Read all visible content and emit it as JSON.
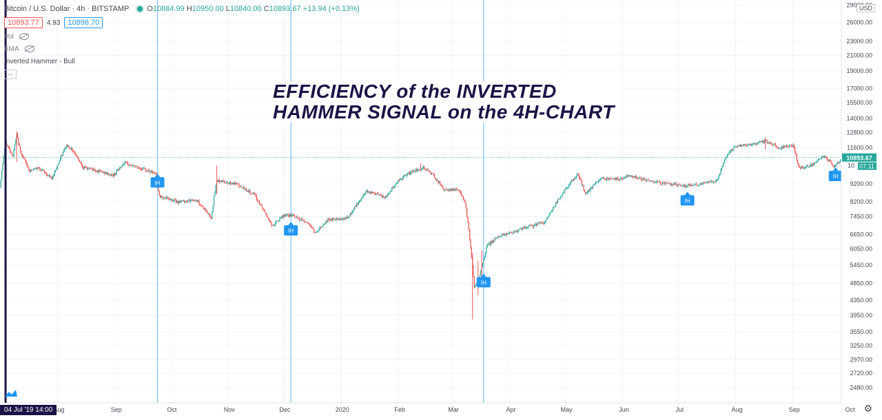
{
  "header": {
    "symbol_title": "Bitcoin / U.S. Dollar · 4h · BITSTAMP",
    "ohlc": {
      "open_label": "O",
      "open": "10884.99",
      "high_label": "H",
      "high": "10950.00",
      "low_label": "L",
      "low": "10840.00",
      "close_label": "C",
      "close": "10893.67",
      "change": "+13.94 (+0.13%)"
    },
    "bid": "10893.77",
    "spread": "4.93",
    "ask": "10898.70",
    "indicators": [
      {
        "label": "Vol"
      },
      {
        "label": "EMA"
      },
      {
        "label": "Inverted Hammer - Bull"
      }
    ],
    "collapse_icon": "chevron-up-icon"
  },
  "headline": {
    "line1": "EFFICIENCY of the INVERTED",
    "line2": "HAMMER  SIGNAL on the 4H-CHART"
  },
  "price_axis": {
    "currency": "USD",
    "last_price": "10893.67",
    "countdown": "07:11",
    "hidden_label": "10"
  },
  "time_axis": {
    "cursor_date": "04 Jul '19   14:00"
  },
  "colors": {
    "up": "#26a69a",
    "down": "#ef5350",
    "marker": "#2196f3",
    "cursor": "#1a1446",
    "annotation": "#2196f3"
  },
  "chart_data": {
    "type": "candlestick",
    "scale": "log",
    "y_ticks": [
      29000,
      26000,
      23000,
      21000,
      19000,
      17000,
      15500,
      14000,
      12800,
      11600,
      9200,
      8200,
      7450,
      6650,
      6050,
      5450,
      4850,
      4350,
      3950,
      3550,
      3250,
      2970,
      2720,
      2480
    ],
    "ylim": [
      2250,
      30000
    ],
    "x_ticks": [
      "Aug",
      "Sep",
      "Oct",
      "Nov",
      "Dec",
      "2020",
      "Feb",
      "Mar",
      "Apr",
      "May",
      "Jun",
      "Jul",
      "Aug",
      "Sep",
      "Oct"
    ],
    "x_tick_dates": [
      "2019-08-01",
      "2019-09-01",
      "2019-10-01",
      "2019-11-01",
      "2019-12-01",
      "2020-01-01",
      "2020-02-01",
      "2020-03-01",
      "2020-04-01",
      "2020-05-01",
      "2020-06-01",
      "2020-07-01",
      "2020-08-01",
      "2020-09-01",
      "2020-10-01"
    ],
    "xlim": [
      "2019-07-01",
      "2020-10-19"
    ],
    "cursor_date": "2019-07-04",
    "price_path": [
      [
        "2019-07-01",
        9000
      ],
      [
        "2019-07-04",
        12000
      ],
      [
        "2019-07-08",
        11000
      ],
      [
        "2019-07-10",
        12600
      ],
      [
        "2019-07-12",
        11300
      ],
      [
        "2019-07-17",
        10000
      ],
      [
        "2019-07-22",
        10200
      ],
      [
        "2019-07-29",
        9500
      ],
      [
        "2019-08-06",
        11800
      ],
      [
        "2019-08-10",
        11300
      ],
      [
        "2019-08-15",
        10200
      ],
      [
        "2019-08-20",
        10100
      ],
      [
        "2019-08-31",
        9700
      ],
      [
        "2019-09-06",
        10500
      ],
      [
        "2019-09-19",
        10000
      ],
      [
        "2019-09-23",
        9800
      ],
      [
        "2019-09-25",
        8500
      ],
      [
        "2019-10-05",
        8200
      ],
      [
        "2019-10-15",
        8300
      ],
      [
        "2019-10-23",
        7400
      ],
      [
        "2019-10-26",
        9400
      ],
      [
        "2019-11-05",
        9200
      ],
      [
        "2019-11-15",
        8600
      ],
      [
        "2019-11-25",
        7000
      ],
      [
        "2019-12-01",
        7500
      ],
      [
        "2019-12-06",
        7500
      ],
      [
        "2019-12-15",
        7100
      ],
      [
        "2019-12-18",
        6700
      ],
      [
        "2019-12-25",
        7300
      ],
      [
        "2020-01-05",
        7400
      ],
      [
        "2020-01-15",
        8800
      ],
      [
        "2020-01-25",
        8400
      ],
      [
        "2020-02-01",
        9400
      ],
      [
        "2020-02-09",
        10000
      ],
      [
        "2020-02-15",
        10200
      ],
      [
        "2020-02-20",
        9700
      ],
      [
        "2020-02-26",
        8800
      ],
      [
        "2020-03-04",
        8900
      ],
      [
        "2020-03-08",
        8200
      ],
      [
        "2020-03-12",
        5400
      ],
      [
        "2020-03-13",
        4700
      ],
      [
        "2020-03-16",
        5100
      ],
      [
        "2020-03-20",
        6200
      ],
      [
        "2020-03-27",
        6600
      ],
      [
        "2020-04-05",
        6800
      ],
      [
        "2020-04-12",
        7000
      ],
      [
        "2020-04-20",
        7200
      ],
      [
        "2020-04-30",
        8700
      ],
      [
        "2020-05-08",
        9800
      ],
      [
        "2020-05-12",
        8600
      ],
      [
        "2020-05-20",
        9500
      ],
      [
        "2020-05-31",
        9500
      ],
      [
        "2020-06-05",
        9700
      ],
      [
        "2020-06-15",
        9400
      ],
      [
        "2020-06-25",
        9200
      ],
      [
        "2020-07-05",
        9100
      ],
      [
        "2020-07-15",
        9200
      ],
      [
        "2020-07-22",
        9400
      ],
      [
        "2020-07-27",
        11000
      ],
      [
        "2020-08-01",
        11700
      ],
      [
        "2020-08-10",
        11800
      ],
      [
        "2020-08-17",
        12100
      ],
      [
        "2020-08-25",
        11600
      ],
      [
        "2020-09-01",
        11800
      ],
      [
        "2020-09-04",
        10200
      ],
      [
        "2020-09-10",
        10300
      ],
      [
        "2020-09-18",
        11000
      ],
      [
        "2020-09-23",
        10300
      ],
      [
        "2020-09-27",
        10700
      ],
      [
        "2020-09-30",
        10890
      ]
    ],
    "spikes": [
      [
        "2019-07-04",
        9400,
        13400
      ],
      [
        "2019-07-10",
        10600,
        12900
      ],
      [
        "2019-10-26",
        8600,
        10350
      ],
      [
        "2020-02-13",
        10000,
        10500
      ],
      [
        "2020-03-12",
        3850,
        5900
      ],
      [
        "2020-03-15",
        4500,
        5600
      ],
      [
        "2020-03-17",
        4900,
        6000
      ],
      [
        "2020-08-17",
        11500,
        12400
      ]
    ],
    "signals": [
      {
        "label": "IH",
        "date": "2019-09-24",
        "price": 9600
      },
      {
        "label": "IH",
        "date": "2019-12-05",
        "price": 7050
      },
      {
        "label": "IH",
        "date": "2020-03-18",
        "price": 5050
      },
      {
        "label": "IH",
        "date": "2020-07-06",
        "price": 8550
      },
      {
        "label": "IH",
        "date": "2020-09-24",
        "price": 10000
      }
    ],
    "annotation_lines": [
      "2019-09-24",
      "2019-12-05",
      "2020-03-18"
    ],
    "last_price": 10893.67
  }
}
